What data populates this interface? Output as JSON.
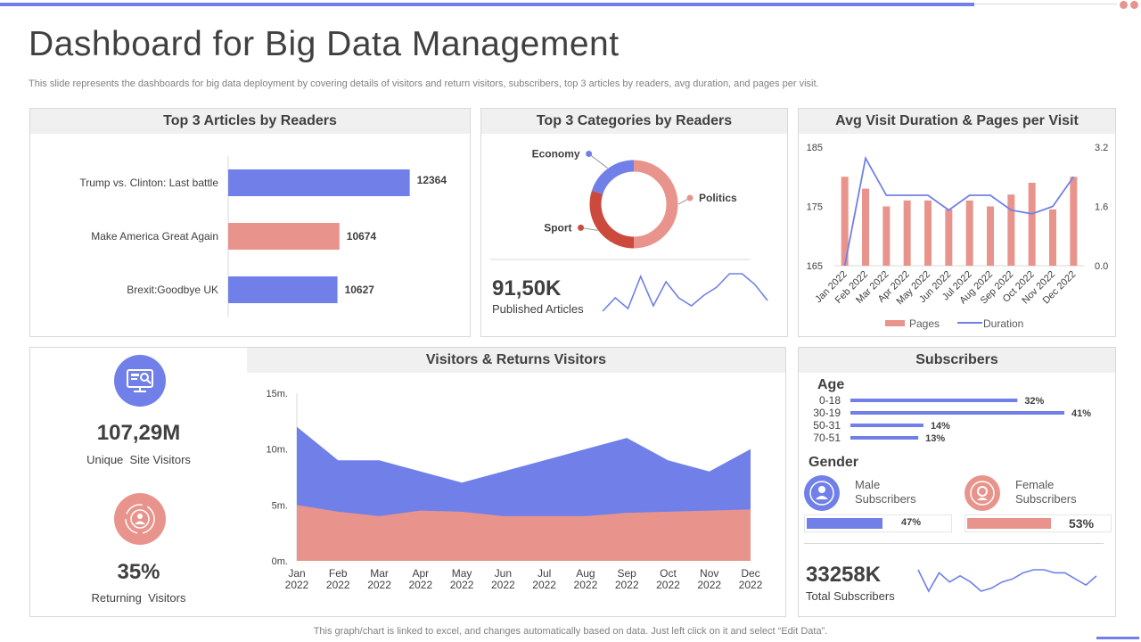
{
  "header": {
    "title": "Dashboard for Big Data Management",
    "subtitle": "This slide represents the dashboards for big data deployment by covering details of visitors and return visitors, subscribers, top 3 articles by readers, avg duration, and pages per visit."
  },
  "colors": {
    "blue": "#7080e8",
    "salmon": "#e8948c",
    "red": "#cc4a3d",
    "gray_bg": "#f0f0f0"
  },
  "articles": {
    "title": "Top 3 Articles by Readers",
    "chart_data": {
      "type": "bar",
      "orientation": "horizontal",
      "categories": [
        "Trump vs. Clinton: Last battle",
        "Make America Great Again",
        "Brexit:Goodbye UK"
      ],
      "values": [
        12364,
        10674,
        10627
      ],
      "value_labels": [
        "12364",
        "10674",
        "10627"
      ],
      "colors": [
        "#7080e8",
        "#e8948c",
        "#7080e8"
      ],
      "xlim": [
        8000,
        12500
      ]
    }
  },
  "categories": {
    "title": "Top 3 Categories by Readers",
    "chart_data": {
      "type": "pie",
      "donut": true,
      "labels": [
        "Politics",
        "Sport",
        "Economy"
      ],
      "values": [
        50,
        30,
        20
      ],
      "colors": [
        "#e8948c",
        "#cc4a3d",
        "#7080e8"
      ]
    },
    "kpi_value": "91,50K",
    "kpi_label": "Published Articles",
    "sparkline": [
      3,
      8,
      4,
      16,
      5,
      14,
      8,
      5,
      9,
      12,
      17,
      17,
      13,
      7
    ]
  },
  "avg_visit": {
    "title": "Avg Visit Duration & Pages per Visit",
    "chart_data": {
      "type": "bar",
      "combo": "bar+line",
      "categories": [
        "Jan 2022",
        "Feb 2022",
        "Mar 2022",
        "Apr 2022",
        "May 2022",
        "Jun 2022",
        "Jul 2022",
        "Aug 2022",
        "Sep 2022",
        "Oct 2022",
        "Nov 2022",
        "Dec 2022"
      ],
      "series": [
        {
          "name": "Pages",
          "type": "bar",
          "axis": "left",
          "values": [
            180,
            178,
            175,
            176,
            176,
            174.5,
            176,
            175,
            177,
            179,
            174.5,
            180
          ]
        },
        {
          "name": "Duration",
          "type": "line",
          "axis": "right",
          "values": [
            0.0,
            2.9,
            1.9,
            1.9,
            1.9,
            1.5,
            1.9,
            1.9,
            1.5,
            1.4,
            1.6,
            2.4
          ]
        }
      ],
      "y_left": {
        "lim": [
          165,
          185
        ],
        "ticks": [
          "165",
          "175",
          "185"
        ]
      },
      "y_right": {
        "lim": [
          0,
          3.2
        ],
        "ticks": [
          "0.0",
          "1.6",
          "3.2"
        ]
      },
      "legend": [
        "Pages",
        "Duration"
      ],
      "legend_position": "bottom"
    }
  },
  "visitors": {
    "unique_value": "107,29M",
    "unique_label": "Unique  Site Visitors",
    "returning_value": "35%",
    "returning_label": "Returning  Visitors",
    "title": "Visitors & Returns Visitors",
    "chart_data": {
      "type": "area",
      "categories": [
        "Jan",
        "Feb",
        "Mar",
        "Apr",
        "May",
        "Jun",
        "Jul",
        "Aug",
        "Sep",
        "Oct",
        "Nov",
        "Dec"
      ],
      "category_years": [
        "2022",
        "2022",
        "2022",
        "2022",
        "2022",
        "2022",
        "2022",
        "2022",
        "2022",
        "2022",
        "2022",
        "2022"
      ],
      "series": [
        {
          "name": "Visitors",
          "values": [
            12,
            9,
            9,
            8,
            7,
            8,
            9,
            10,
            11,
            9,
            8,
            10
          ],
          "color": "#7080e8"
        },
        {
          "name": "Returns Visitors",
          "values": [
            5,
            4.4,
            4,
            4.5,
            4.4,
            4,
            4,
            4,
            4.3,
            4.4,
            4.5,
            4.6
          ],
          "color": "#e8948c"
        }
      ],
      "ylim": [
        0,
        15
      ],
      "yticks": [
        "0m.",
        "5m.",
        "10m.",
        "15m."
      ]
    }
  },
  "subscribers": {
    "title": "Subscribers",
    "age_title": "Age",
    "age_chart": {
      "type": "bar",
      "orientation": "horizontal",
      "categories": [
        "0-18",
        "30-19",
        "50-31",
        "70-51"
      ],
      "values": [
        32,
        41,
        14,
        13
      ],
      "value_labels": [
        "32%",
        "41%",
        "14%",
        "13%"
      ]
    },
    "gender_title": "Gender",
    "male_label_1": "Male",
    "male_label_2": "Subscribers",
    "female_label_1": "Female",
    "female_label_2": "Subscribers",
    "male_pct_value": 47,
    "female_pct_value": 53,
    "male_pct": "47%",
    "female_pct": "53%",
    "total_value": "33258K",
    "total_label": "Total Subscribers",
    "sparkline": [
      10,
      3,
      9,
      6,
      8,
      6,
      3,
      4,
      6,
      7,
      9,
      10,
      10,
      9,
      9,
      7,
      5,
      8
    ]
  },
  "footer": {
    "note": "This graph/chart is linked to excel,  and changes automatically based on data. Just left click on it and select “Edit Data”."
  }
}
